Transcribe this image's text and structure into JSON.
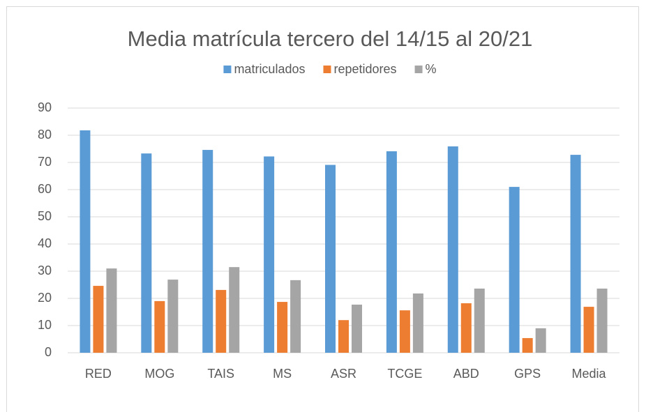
{
  "chart_data": {
    "type": "bar",
    "title": "Media matrícula tercero del 14/15 al 20/21",
    "categories": [
      "RED",
      "MOG",
      "TAIS",
      "MS",
      "ASR",
      "TCGE",
      "ABD",
      "GPS",
      "Media"
    ],
    "series": [
      {
        "name": "matriculados",
        "color": "#5b9bd5",
        "values": [
          81.8,
          73.3,
          74.6,
          72.2,
          69.1,
          74.1,
          75.9,
          61.0,
          72.8
        ]
      },
      {
        "name": "repetidores",
        "color": "#ed7d31",
        "values": [
          24.6,
          19.0,
          23.1,
          18.7,
          12.0,
          15.6,
          18.2,
          5.4,
          16.9
        ]
      },
      {
        "name": "%",
        "color": "#a5a5a5",
        "values": [
          31.0,
          26.9,
          31.5,
          26.7,
          17.7,
          21.8,
          23.6,
          9.0,
          23.6
        ]
      }
    ],
    "ylim": [
      0,
      90
    ],
    "yticks": [
      0,
      10,
      20,
      30,
      40,
      50,
      60,
      70,
      80,
      90
    ],
    "grid": true,
    "legend": "top"
  }
}
